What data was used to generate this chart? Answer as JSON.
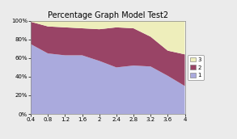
{
  "title": "Percentage Graph Model Test2",
  "x_labels": [
    "0.4",
    "0.8",
    "1.2",
    "1.6",
    "2",
    "2.4",
    "2.8",
    "3.2",
    "3.6",
    "4"
  ],
  "x_values": [
    0.4,
    0.8,
    1.2,
    1.6,
    2.0,
    2.4,
    2.8,
    3.2,
    3.6,
    4.0
  ],
  "series1": [
    0.75,
    0.65,
    0.63,
    0.63,
    0.57,
    0.5,
    0.52,
    0.51,
    0.41,
    0.3
  ],
  "series2": [
    0.24,
    0.29,
    0.3,
    0.29,
    0.34,
    0.43,
    0.4,
    0.32,
    0.27,
    0.34
  ],
  "series3": [
    0.01,
    0.06,
    0.07,
    0.08,
    0.09,
    0.07,
    0.08,
    0.17,
    0.32,
    0.36
  ],
  "color1": "#aaaadd",
  "color2": "#994466",
  "color3": "#eeeebb",
  "ylim": [
    0,
    1
  ],
  "yticks": [
    0,
    0.2,
    0.4,
    0.6,
    0.8,
    1.0
  ],
  "ytick_labels": [
    "0%",
    "20%",
    "40%",
    "60%",
    "80%",
    "100%"
  ],
  "legend_labels": [
    "3",
    "2",
    "1"
  ],
  "bg_color": "#ebebeb",
  "plot_bg_color": "#ffffff",
  "title_fontsize": 7,
  "tick_fontsize": 5
}
